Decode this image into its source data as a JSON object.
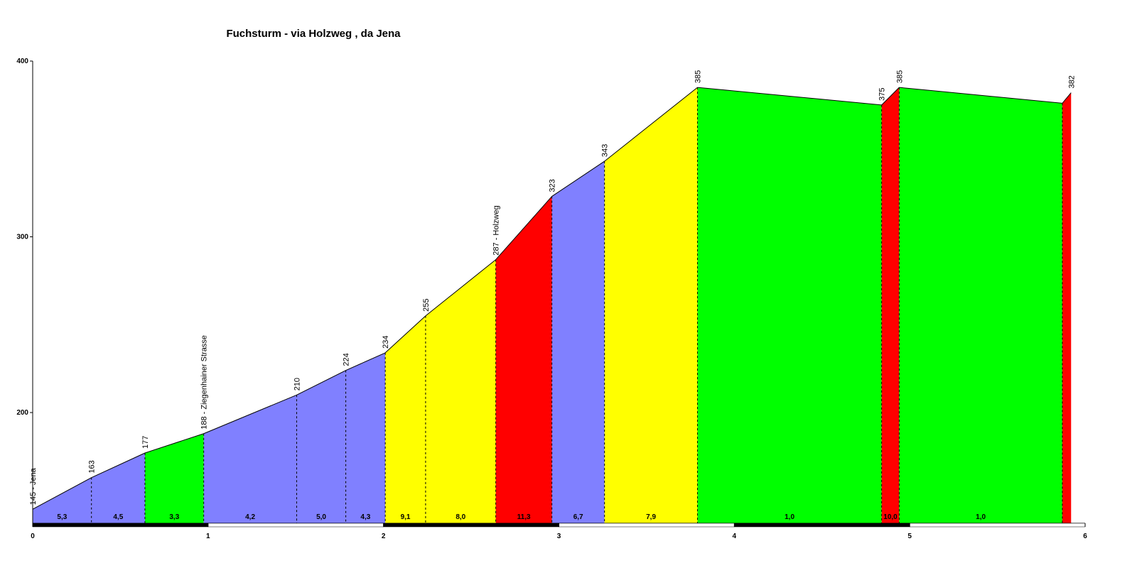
{
  "chart_data": {
    "type": "profile",
    "title": "Fuchsturm - via Holzweg , da Jena",
    "x": [
      0,
      0.335,
      0.64,
      0.975,
      1.505,
      1.785,
      2.01,
      2.24,
      2.64,
      2.96,
      3.26,
      3.79,
      4.84,
      4.94,
      5.87,
      5.92
    ],
    "values": [
      145,
      163,
      177,
      188,
      210,
      224,
      234,
      255,
      287,
      323,
      343,
      385,
      375,
      385,
      376,
      382
    ],
    "value_labels": [
      "145 - Jena",
      "163",
      "177",
      "188 - Ziegenhainer Strasse",
      "210",
      "224",
      "234",
      "255",
      "287 - Holzweg",
      "323",
      "343",
      "385",
      "375",
      "385",
      null,
      "382"
    ],
    "segment_labels": [
      "5,3",
      "4,5",
      "3,3",
      "4,2",
      "5,0",
      "4,3",
      "9,1",
      "8,0",
      "11,3",
      "6,7",
      "7,9",
      "1,0",
      "10,0",
      "1,0",
      null
    ],
    "segment_colors": [
      "#8080ff",
      "#8080ff",
      "#00ff00",
      "#8080ff",
      "#8080ff",
      "#8080ff",
      "#ffff00",
      "#ffff00",
      "#ff0000",
      "#8080ff",
      "#ffff00",
      "#00ff00",
      "#ff0000",
      "#00ff00",
      "#ff0000"
    ],
    "xlim": [
      0,
      6
    ],
    "xticks": [
      0,
      1,
      2,
      3,
      4,
      5,
      6
    ],
    "ylim": [
      137,
      400
    ],
    "yticks": [
      200,
      300,
      400
    ]
  }
}
